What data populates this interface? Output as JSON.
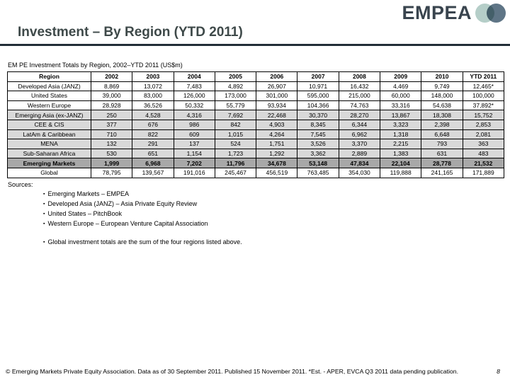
{
  "logo": {
    "text": "EMPEA"
  },
  "icons": {
    "bullet_icon": "▪",
    "logo_circle_left": "light-teal-circle-icon",
    "logo_circle_right": "slate-circle-icon"
  },
  "colors": {
    "title": "#3e4949",
    "rule": "#222e38",
    "logo_text": "#39444e",
    "logo_circle_left": "#b5cec8",
    "logo_circle_right": "#5f7586",
    "row_light": "#d9d9d9",
    "row_dark": "#a8a8a8"
  },
  "slide": {
    "title": "Investment – By Region (YTD 2011)"
  },
  "table": {
    "caption": "EM PE Investment Totals by Region, 2002–YTD 2011 (US$m)",
    "columns": [
      "Region",
      "2002",
      "2003",
      "2004",
      "2005",
      "2006",
      "2007",
      "2008",
      "2009",
      "2010",
      "YTD 2011"
    ],
    "rows": [
      {
        "region": "Developed Asia (JANZ)",
        "shade": "white",
        "values": [
          "8,869",
          "13,072",
          "7,483",
          "4,892",
          "26,907",
          "10,971",
          "16,432",
          "4,469",
          "9,749",
          "12,465*"
        ]
      },
      {
        "region": "United States",
        "shade": "white",
        "values": [
          "39,000",
          "83,000",
          "126,000",
          "173,000",
          "301,000",
          "595,000",
          "215,000",
          "60,000",
          "148,000",
          "100,000"
        ]
      },
      {
        "region": "Western Europe",
        "shade": "white",
        "values": [
          "28,928",
          "36,526",
          "50,332",
          "55,779",
          "93,934",
          "104,366",
          "74,763",
          "33,316",
          "54,638",
          "37,892*"
        ]
      },
      {
        "region": "Emerging Asia (ex-JANZ)",
        "shade": "light",
        "values": [
          "250",
          "4,528",
          "4,316",
          "7,692",
          "22,468",
          "30,370",
          "28,270",
          "13,867",
          "18,308",
          "15,752"
        ]
      },
      {
        "region": "CEE & CIS",
        "shade": "light",
        "values": [
          "377",
          "676",
          "986",
          "842",
          "4,903",
          "8,345",
          "6,344",
          "3,323",
          "2,398",
          "2,853"
        ]
      },
      {
        "region": "LatAm & Caribbean",
        "shade": "light",
        "values": [
          "710",
          "822",
          "609",
          "1,015",
          "4,264",
          "7,545",
          "6,962",
          "1,318",
          "6,648",
          "2,081"
        ]
      },
      {
        "region": "MENA",
        "shade": "light",
        "values": [
          "132",
          "291",
          "137",
          "524",
          "1,751",
          "3,526",
          "3,370",
          "2,215",
          "793",
          "363"
        ]
      },
      {
        "region": "Sub-Saharan Africa",
        "shade": "light",
        "values": [
          "530",
          "651",
          "1,154",
          "1,723",
          "1,292",
          "3,362",
          "2,889",
          "1,383",
          "631",
          "483"
        ]
      },
      {
        "region": "Emerging Markets",
        "shade": "dark",
        "values": [
          "1,999",
          "6,968",
          "7,202",
          "11,796",
          "34,678",
          "53,148",
          "47,834",
          "22,104",
          "28,778",
          "21,532"
        ]
      },
      {
        "region": "Global",
        "shade": "white",
        "values": [
          "78,795",
          "139,567",
          "191,016",
          "245,467",
          "456,519",
          "763,485",
          "354,030",
          "119,888",
          "241,165",
          "171,889"
        ]
      }
    ]
  },
  "sources": {
    "label": "Sources:",
    "items": [
      "Emerging Markets – EMPEA",
      "Developed Asia (JANZ) – Asia Private Equity Review",
      "United States – PitchBook",
      "Western Europe – European Venture Capital Association"
    ],
    "note": "Global investment totals are the sum of the four regions listed above."
  },
  "footer": {
    "text": "© Emerging Markets Private Equity Association. Data as of 30 September 2011. Published 15 November 2011. *Est. - APER, EVCA Q3 2011 data pending publication.",
    "page": "8"
  }
}
